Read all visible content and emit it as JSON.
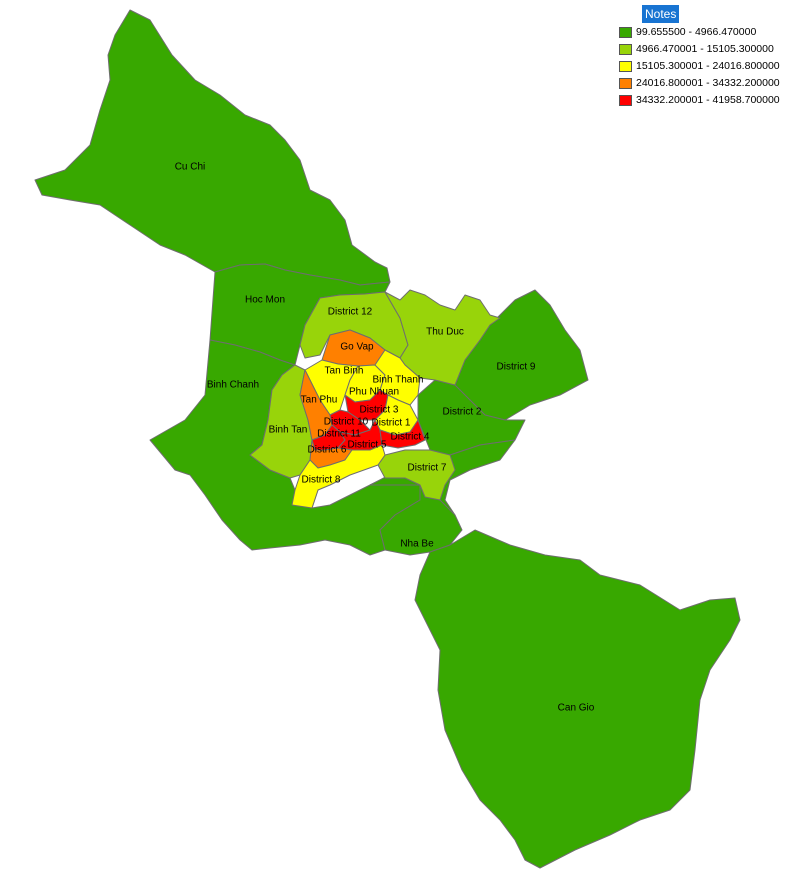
{
  "legend": {
    "title": "Notes",
    "classes": [
      {
        "label": "99.655500 - 4966.470000",
        "color": "#38a800"
      },
      {
        "label": "4966.470001 - 15105.300000",
        "color": "#98d40a"
      },
      {
        "label": "15105.300001 - 24016.800000",
        "color": "#ffff00"
      },
      {
        "label": "24016.800001 - 34332.200000",
        "color": "#ff8000"
      },
      {
        "label": "34332.200001 - 41958.700000",
        "color": "#ff0000"
      }
    ]
  },
  "districts": [
    {
      "name": "Cu Chi",
      "class": 0
    },
    {
      "name": "Hoc Mon",
      "class": 0
    },
    {
      "name": "Binh Chanh",
      "class": 0
    },
    {
      "name": "Nha Be",
      "class": 0
    },
    {
      "name": "Can Gio",
      "class": 0
    },
    {
      "name": "District 9",
      "class": 0
    },
    {
      "name": "District 2",
      "class": 0
    },
    {
      "name": "District 12",
      "class": 1
    },
    {
      "name": "Thu Duc",
      "class": 1
    },
    {
      "name": "Binh Tan",
      "class": 1
    },
    {
      "name": "District 7",
      "class": 1
    },
    {
      "name": "Tan Binh",
      "class": 2
    },
    {
      "name": "Phu Nhuan",
      "class": 2
    },
    {
      "name": "Binh Thanh",
      "class": 2
    },
    {
      "name": "District 8",
      "class": 2
    },
    {
      "name": "District 1",
      "class": 2
    },
    {
      "name": "Go Vap",
      "class": 3
    },
    {
      "name": "Tan Phu",
      "class": 3
    },
    {
      "name": "District 6",
      "class": 3
    },
    {
      "name": "District 3",
      "class": 4
    },
    {
      "name": "District 10",
      "class": 4
    },
    {
      "name": "District 11",
      "class": 4
    },
    {
      "name": "District 5",
      "class": 4
    },
    {
      "name": "District 4",
      "class": 4
    }
  ]
}
